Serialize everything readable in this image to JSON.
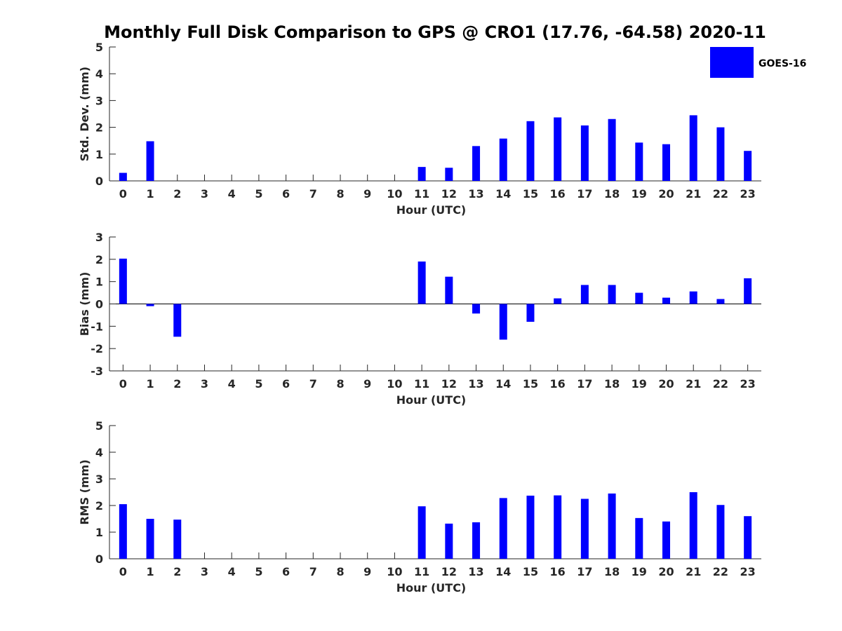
{
  "figure": {
    "title": "Monthly Full Disk Comparison to GPS @ CRO1 (17.76, -64.58) 2020-11"
  },
  "legend": {
    "label": "GOES-16",
    "color": "#0000ff",
    "placement": "top-right"
  },
  "chart_data": [
    {
      "type": "bar",
      "categories": [
        "0",
        "1",
        "2",
        "3",
        "4",
        "5",
        "6",
        "7",
        "8",
        "9",
        "10",
        "11",
        "12",
        "13",
        "14",
        "15",
        "16",
        "17",
        "18",
        "19",
        "20",
        "21",
        "22",
        "23"
      ],
      "series": [
        {
          "name": "GOES-16",
          "color": "#0000ff",
          "values": [
            0.3,
            1.48,
            null,
            null,
            null,
            null,
            null,
            null,
            null,
            null,
            null,
            0.52,
            0.49,
            1.3,
            1.58,
            2.23,
            2.37,
            2.07,
            2.31,
            1.43,
            1.37,
            2.45,
            2.0,
            1.12
          ]
        }
      ],
      "xlabel": "Hour (UTC)",
      "ylabel": "Std. Dev. (mm)",
      "ylim": [
        0,
        5
      ],
      "yticks": [
        0,
        1,
        2,
        3,
        4,
        5
      ],
      "grid": false
    },
    {
      "type": "bar",
      "categories": [
        "0",
        "1",
        "2",
        "3",
        "4",
        "5",
        "6",
        "7",
        "8",
        "9",
        "10",
        "11",
        "12",
        "13",
        "14",
        "15",
        "16",
        "17",
        "18",
        "19",
        "20",
        "21",
        "22",
        "23"
      ],
      "series": [
        {
          "name": "GOES-16",
          "color": "#0000ff",
          "values": [
            2.03,
            -0.1,
            -1.47,
            null,
            null,
            null,
            null,
            null,
            null,
            null,
            null,
            1.9,
            1.22,
            -0.43,
            -1.6,
            -0.8,
            0.25,
            0.85,
            0.85,
            0.5,
            0.28,
            0.56,
            0.22,
            1.15
          ]
        }
      ],
      "xlabel": "Hour (UTC)",
      "ylabel": "Bias (mm)",
      "ylim": [
        -3,
        3
      ],
      "yticks": [
        -3,
        -2,
        -1,
        0,
        1,
        2,
        3
      ],
      "grid": false
    },
    {
      "type": "bar",
      "categories": [
        "0",
        "1",
        "2",
        "3",
        "4",
        "5",
        "6",
        "7",
        "8",
        "9",
        "10",
        "11",
        "12",
        "13",
        "14",
        "15",
        "16",
        "17",
        "18",
        "19",
        "20",
        "21",
        "22",
        "23"
      ],
      "series": [
        {
          "name": "GOES-16",
          "color": "#0000ff",
          "values": [
            2.05,
            1.5,
            1.47,
            null,
            null,
            null,
            null,
            null,
            null,
            null,
            null,
            1.97,
            1.32,
            1.37,
            2.28,
            2.37,
            2.38,
            2.25,
            2.45,
            1.53,
            1.4,
            2.5,
            2.02,
            1.6
          ]
        }
      ],
      "xlabel": "Hour (UTC)",
      "ylabel": "RMS (mm)",
      "ylim": [
        0,
        5
      ],
      "yticks": [
        0,
        1,
        2,
        3,
        4,
        5
      ],
      "grid": false
    }
  ]
}
